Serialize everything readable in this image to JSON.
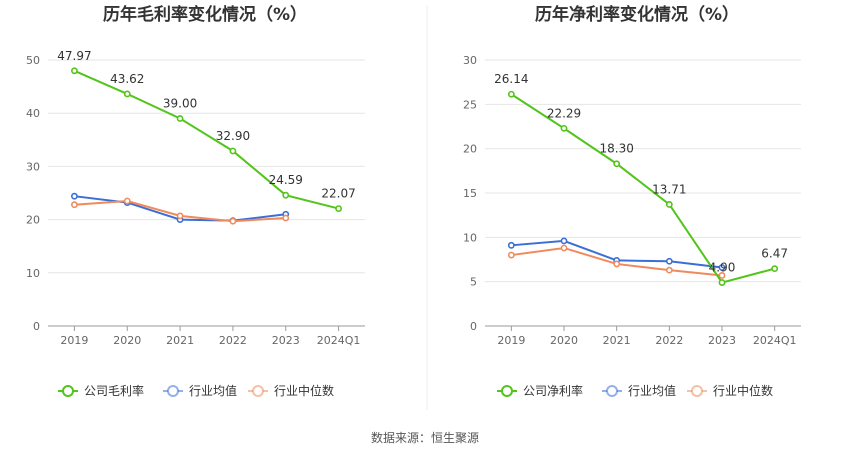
{
  "chart_data": [
    {
      "type": "line",
      "title": "历年毛利率变化情况（%）",
      "categories": [
        "2019",
        "2020",
        "2021",
        "2022",
        "2023",
        "2024Q1"
      ],
      "ylim": [
        0,
        50
      ],
      "yticks": [
        0,
        10,
        20,
        30,
        40,
        50
      ],
      "grid": true,
      "legend_position": "bottom",
      "series": [
        {
          "name": "公司毛利率",
          "color": "#52c41a",
          "values": [
            47.97,
            43.62,
            39.0,
            32.9,
            24.59,
            22.07
          ],
          "labels": [
            "47.97",
            "43.62",
            "39.00",
            "32.90",
            "24.59",
            "22.07"
          ]
        },
        {
          "name": "行业均值",
          "color": "#3a6fd8",
          "values": [
            24.4,
            23.2,
            20.0,
            19.8,
            21.0,
            null
          ]
        },
        {
          "name": "行业中位数",
          "color": "#f08a5d",
          "values": [
            22.8,
            23.5,
            20.7,
            19.7,
            20.3,
            null
          ]
        }
      ]
    },
    {
      "type": "line",
      "title": "历年净利率变化情况（%）",
      "categories": [
        "2019",
        "2020",
        "2021",
        "2022",
        "2023",
        "2024Q1"
      ],
      "ylim": [
        0,
        30
      ],
      "yticks": [
        0,
        5,
        10,
        15,
        20,
        25,
        30
      ],
      "grid": true,
      "legend_position": "bottom",
      "series": [
        {
          "name": "公司净利率",
          "color": "#52c41a",
          "values": [
            26.14,
            22.29,
            18.3,
            13.71,
            4.9,
            6.47
          ],
          "labels": [
            "26.14",
            "22.29",
            "18.30",
            "13.71",
            "4.90",
            "6.47"
          ]
        },
        {
          "name": "行业均值",
          "color": "#3a6fd8",
          "values": [
            9.1,
            9.6,
            7.4,
            7.3,
            6.6,
            null
          ]
        },
        {
          "name": "行业中位数",
          "color": "#f08a5d",
          "values": [
            8.0,
            8.8,
            7.0,
            6.3,
            5.7,
            null
          ]
        }
      ]
    }
  ],
  "footer": {
    "source": "数据来源：恒生聚源"
  }
}
